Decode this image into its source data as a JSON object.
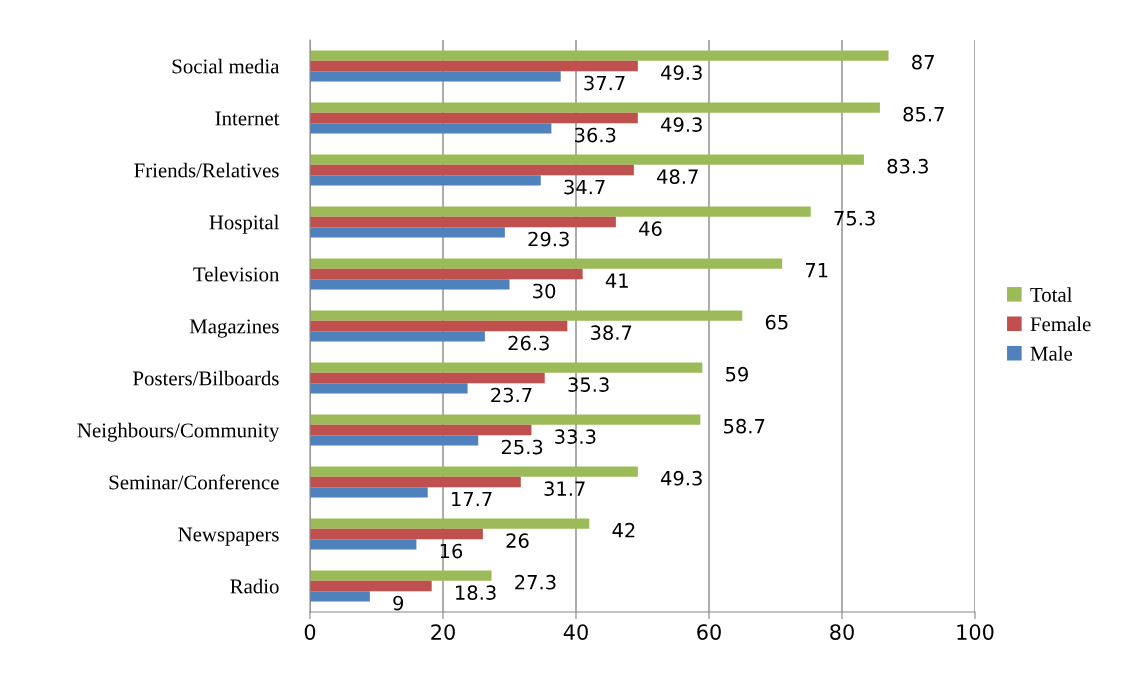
{
  "chart_data": {
    "type": "bar",
    "orientation": "horizontal",
    "categories": [
      "Social media",
      "Internet",
      "Friends/Relatives",
      "Hospital",
      "Television",
      "Magazines",
      "Posters/Bilboards",
      "Neighbours/Community",
      "Seminar/Conference",
      "Newspapers",
      "Radio"
    ],
    "series": [
      {
        "name": "Total",
        "color": "#9bbb59",
        "values": [
          87,
          85.7,
          83.3,
          75.3,
          71,
          65,
          59,
          58.7,
          49.3,
          42,
          27.3
        ]
      },
      {
        "name": "Female",
        "color": "#c0504d",
        "values": [
          49.3,
          49.3,
          48.7,
          46,
          41,
          38.7,
          35.3,
          33.3,
          31.7,
          26,
          18.3
        ]
      },
      {
        "name": "Male",
        "color": "#4f81bd",
        "values": [
          37.7,
          36.3,
          34.7,
          29.3,
          30,
          26.3,
          23.7,
          25.3,
          17.7,
          16,
          9
        ]
      }
    ],
    "xlim": [
      0,
      100
    ],
    "xticks": [
      0,
      20,
      40,
      60,
      80,
      100
    ],
    "grid": "x",
    "legend": "right",
    "data_labels": true
  }
}
